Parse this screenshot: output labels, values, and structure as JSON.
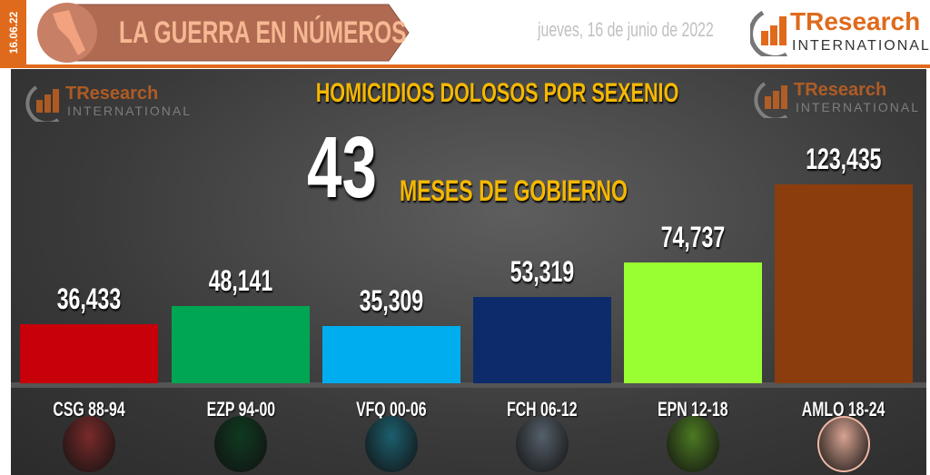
{
  "header": {
    "date_strip": "16.06.22",
    "banner_title": "LA GUERRA EN NÚMEROS",
    "date_text": "jueves, 16 de junio de 2022",
    "logo": {
      "brand": "TResearch",
      "sub": "INTERNATIONAL"
    }
  },
  "colors": {
    "accent": "#e06a1b",
    "title": "#f5b800"
  },
  "chart_data": {
    "type": "bar",
    "title": "HOMICIDIOS DOLOSOS POR SEXENIO",
    "highlight_number": "43",
    "highlight_text": "MESES DE GOBIERNO",
    "categories": [
      "CSG 88-94",
      "EZP 94-00",
      "VFQ 00-06",
      "FCH 06-12",
      "EPN 12-18",
      "AMLO 18-24"
    ],
    "values": [
      36433,
      48141,
      35309,
      53319,
      74737,
      123435
    ],
    "value_labels": [
      "36,433",
      "48,141",
      "35,309",
      "53,319",
      "74,737",
      "123,435"
    ],
    "colors": [
      "#c8000a",
      "#00a651",
      "#00aeef",
      "#0d2a6b",
      "#99ff33",
      "#8b3d0e"
    ],
    "photo_tints": [
      "#7a2a2a",
      "#0f3a20",
      "#1c5f6e",
      "#55606a",
      "#4c7a22",
      "#d7a391"
    ],
    "ylim": [
      0,
      123435
    ],
    "grid": false,
    "legend": "none"
  }
}
